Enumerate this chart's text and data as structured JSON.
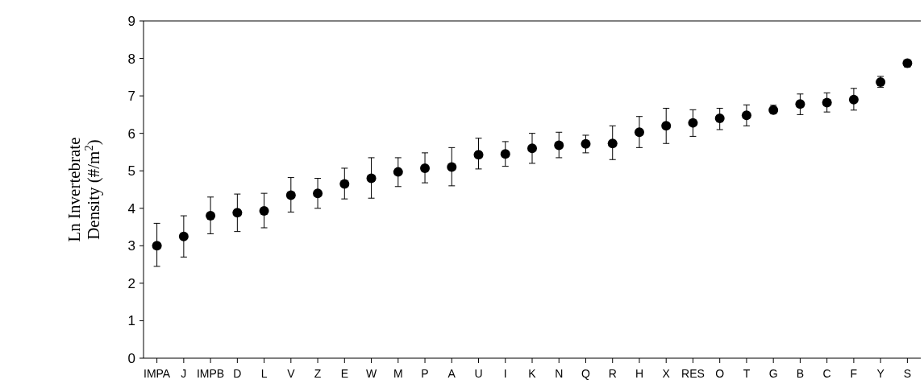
{
  "chart_data": {
    "type": "scatter",
    "ylabel": "Ln Invertebrate Density (#/m$^{2}$)",
    "categories": [
      "IMPA",
      "J",
      "IMPB",
      "D",
      "L",
      "V",
      "Z",
      "E",
      "W",
      "M",
      "P",
      "A",
      "U",
      "I",
      "K",
      "N",
      "Q",
      "R",
      "H",
      "X",
      "RES",
      "O",
      "T",
      "G",
      "B",
      "C",
      "F",
      "Y",
      "S"
    ],
    "values": [
      3.0,
      3.25,
      3.8,
      3.88,
      3.93,
      4.35,
      4.4,
      4.65,
      4.8,
      4.97,
      5.07,
      5.1,
      5.43,
      5.45,
      5.6,
      5.68,
      5.72,
      5.73,
      6.03,
      6.2,
      6.28,
      6.4,
      6.48,
      6.62,
      6.78,
      6.82,
      6.9,
      7.37,
      7.87
    ],
    "errors": [
      [
        2.45,
        3.6
      ],
      [
        2.7,
        3.8
      ],
      [
        3.32,
        4.3
      ],
      [
        3.38,
        4.38
      ],
      [
        3.48,
        4.4
      ],
      [
        3.9,
        4.82
      ],
      [
        4.0,
        4.8
      ],
      [
        4.25,
        5.07
      ],
      [
        4.27,
        5.35
      ],
      [
        4.58,
        5.35
      ],
      [
        4.68,
        5.48
      ],
      [
        4.6,
        5.62
      ],
      [
        5.05,
        5.87
      ],
      [
        5.12,
        5.78
      ],
      [
        5.2,
        6.0
      ],
      [
        5.35,
        6.03
      ],
      [
        5.48,
        5.95
      ],
      [
        5.3,
        6.2
      ],
      [
        5.62,
        6.45
      ],
      [
        5.73,
        6.67
      ],
      [
        5.92,
        6.63
      ],
      [
        6.1,
        6.67
      ],
      [
        6.2,
        6.76
      ],
      [
        6.53,
        6.75
      ],
      [
        6.5,
        7.05
      ],
      [
        6.57,
        7.08
      ],
      [
        6.62,
        7.2
      ],
      [
        7.23,
        7.52
      ],
      [
        7.77,
        7.96
      ]
    ],
    "color": "#000000",
    "marker": "circle",
    "ylim": [
      0,
      9
    ],
    "yticks": [
      0,
      1,
      2,
      3,
      4,
      5,
      6,
      7,
      8,
      9
    ],
    "grid": false
  }
}
